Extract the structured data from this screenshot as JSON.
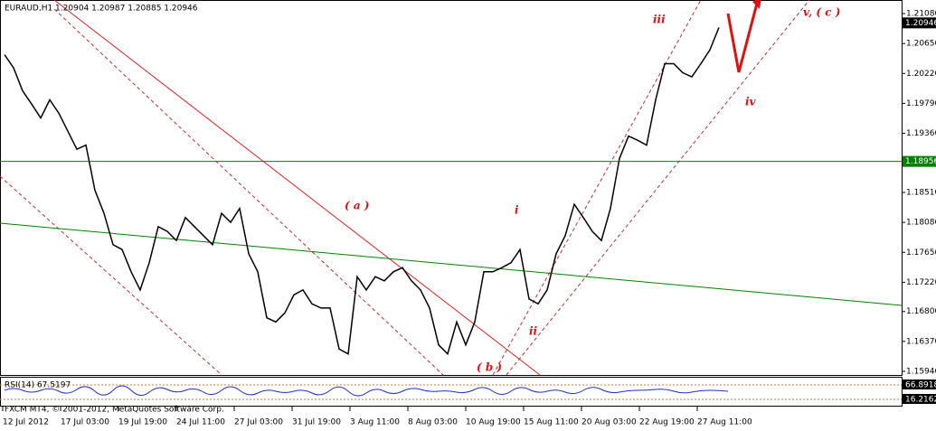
{
  "chart_data": {
    "type": "line",
    "title": "EURAUD,H1  1.20904 1.20987 1.20885 1.20946",
    "series": [
      {
        "name": "EURAUD",
        "color": "#000000",
        "values": [
          1.2049,
          1.203,
          1.1997,
          1.1978,
          1.1958,
          1.1984,
          1.1965,
          1.1939,
          1.1913,
          1.1919,
          1.1854,
          1.1821,
          1.1776,
          1.1769,
          1.1737,
          1.1711,
          1.175,
          1.1802,
          1.1795,
          1.1782,
          1.1815,
          1.1802,
          1.1789,
          1.1776,
          1.1821,
          1.1808,
          1.1828,
          1.1763,
          1.1737,
          1.1671,
          1.1665,
          1.1678,
          1.1704,
          1.1711,
          1.1691,
          1.1685,
          1.1685,
          1.1626,
          1.1619,
          1.173,
          1.1711,
          1.173,
          1.1724,
          1.1737,
          1.1743,
          1.1724,
          1.1711,
          1.1685,
          1.1632,
          1.1619,
          1.1665,
          1.1632,
          1.1665,
          1.1737,
          1.1737,
          1.1743,
          1.175,
          1.1769,
          1.1698,
          1.1691,
          1.1711,
          1.1763,
          1.1789,
          1.1834,
          1.1815,
          1.1795,
          1.1782,
          1.1828,
          1.19,
          1.1932,
          1.1926,
          1.1919,
          1.1984,
          1.2036,
          1.2036,
          1.2023,
          1.2017,
          1.2036,
          1.2056,
          1.2088
        ]
      }
    ],
    "ylim": [
      1.15888,
      1.21275
    ],
    "yticks": [
      {
        "value": 1.2108,
        "label": "1.21080"
      },
      {
        "value": 1.2065,
        "label": "1.20650"
      },
      {
        "value": 1.2022,
        "label": "1.20220"
      },
      {
        "value": 1.1979,
        "label": "1.19790"
      },
      {
        "value": 1.1936,
        "label": "1.19360"
      },
      {
        "value": 1.1851,
        "label": "1.18510"
      },
      {
        "value": 1.1808,
        "label": "1.18080"
      },
      {
        "value": 1.1765,
        "label": "1.17650"
      },
      {
        "value": 1.1722,
        "label": "1.17220"
      },
      {
        "value": 1.168,
        "label": "1.16800"
      },
      {
        "value": 1.1637,
        "label": "1.16370"
      },
      {
        "value": 1.1594,
        "label": "1.15940"
      }
    ],
    "x_labels": [
      "12 Jul 2012",
      "17 Jul 03:00",
      "19 Jul 19:00",
      "24 Jul 11:00",
      "27 Jul 03:00",
      "31 Jul 19:00",
      "3 Aug 11:00",
      "8 Aug 03:00",
      "10 Aug 19:00",
      "15 Aug 11:00",
      "20 Aug 03:00",
      "22 Aug 19:00",
      "27 Aug 11:00"
    ],
    "last_price": {
      "value": 1.20946,
      "label": "1.20946"
    },
    "level": {
      "value": 1.18956,
      "label": "1.18956",
      "color": "#008000"
    },
    "annotations": [
      "iii",
      "v, ( c )",
      "iv",
      "( a )",
      "i",
      "ii",
      "( b )"
    ],
    "rsi": {
      "title": "RSI(14) 67.5197",
      "labels": [
        "66.8918",
        "16.2162"
      ]
    },
    "footer": "FXCM MT4, © 2001-2012, MetaQuotes Software Corp."
  }
}
